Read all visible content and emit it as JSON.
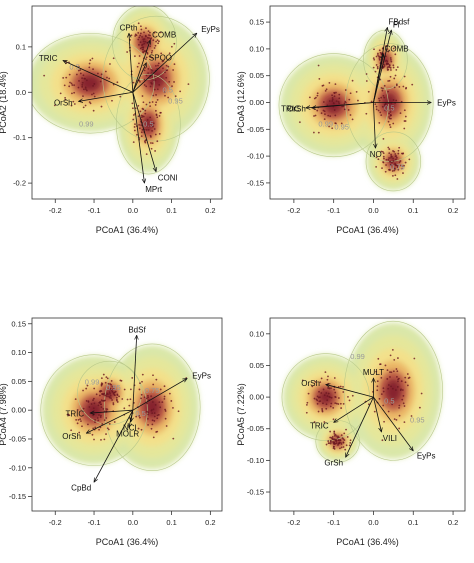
{
  "figure": {
    "panels": [
      {
        "id": "a",
        "xlabel": "PCoA1 (36.4%)",
        "ylabel": "PCoA2 (18.4%)",
        "xlim": [
          -0.26,
          0.23
        ],
        "ylim": [
          -0.235,
          0.19
        ],
        "xticks": [
          "-0.2",
          "-0.1",
          "0.0",
          "0.1",
          "0.2"
        ],
        "xtick_values": [
          -0.2,
          -0.1,
          0.0,
          0.1,
          0.2
        ],
        "yticks": [
          "0.1",
          "0.0",
          "-0.1",
          "-0.2"
        ],
        "ytick_values": [
          0.1,
          0.0,
          -0.1,
          -0.2
        ],
        "density_centers": [
          {
            "x": -0.11,
            "y": 0.02,
            "w": 0.06,
            "h": 0.04
          },
          {
            "x": 0.06,
            "y": 0.03,
            "w": 0.05,
            "h": 0.05
          },
          {
            "x": 0.04,
            "y": -0.07,
            "w": 0.03,
            "h": 0.04
          },
          {
            "x": 0.03,
            "y": 0.11,
            "w": 0.03,
            "h": 0.03
          }
        ],
        "contour_labels": [
          {
            "text": "0.5",
            "x": -0.15,
            "y": 0.05
          },
          {
            "text": "0.95",
            "x": 0.11,
            "y": -0.025
          },
          {
            "text": "0.99",
            "x": -0.12,
            "y": -0.075
          },
          {
            "text": "0.5",
            "x": 0.09,
            "y": 0.0
          },
          {
            "text": "0.5",
            "x": 0.04,
            "y": -0.075
          }
        ],
        "vectors": [
          {
            "label": "TRIC",
            "x": -0.18,
            "y": 0.07
          },
          {
            "label": "CPth",
            "x": -0.01,
            "y": 0.13
          },
          {
            "label": "COMB",
            "x": 0.045,
            "y": 0.115
          },
          {
            "label": "EyPs",
            "x": 0.165,
            "y": 0.13
          },
          {
            "label": "SPOO",
            "x": 0.035,
            "y": 0.065
          },
          {
            "label": "OrSh",
            "x": -0.14,
            "y": -0.02
          },
          {
            "label": "CONI",
            "x": 0.06,
            "y": -0.175
          },
          {
            "label": "MPrt",
            "x": 0.03,
            "y": -0.2
          }
        ]
      },
      {
        "id": "b",
        "xlabel": "PCoA1 (36.4%)",
        "ylabel": "PCoA3 (12.6%)",
        "xlim": [
          -0.26,
          0.23
        ],
        "ylim": [
          -0.18,
          0.18
        ],
        "xticks": [
          "-0.2",
          "-0.1",
          "0.0",
          "0.1",
          "0.2"
        ],
        "xtick_values": [
          -0.2,
          -0.1,
          0.0,
          0.1,
          0.2
        ],
        "yticks": [
          "0.15",
          "0.10",
          "0.05",
          "0.00",
          "-0.05",
          "-0.10",
          "-0.15"
        ],
        "ytick_values": [
          0.15,
          0.1,
          0.05,
          0.0,
          -0.05,
          -0.1,
          -0.15
        ],
        "density_centers": [
          {
            "x": -0.1,
            "y": -0.005,
            "w": 0.05,
            "h": 0.035
          },
          {
            "x": 0.04,
            "y": 0.0,
            "w": 0.04,
            "h": 0.04
          },
          {
            "x": 0.05,
            "y": -0.11,
            "w": 0.025,
            "h": 0.02
          },
          {
            "x": 0.03,
            "y": 0.08,
            "w": 0.02,
            "h": 0.02
          }
        ],
        "contour_labels": [
          {
            "text": "0.99",
            "x": -0.12,
            "y": -0.045
          },
          {
            "text": "0.95",
            "x": -0.08,
            "y": -0.05
          },
          {
            "text": "0.5",
            "x": 0.04,
            "y": -0.015
          },
          {
            "text": "0.75",
            "x": 0.06,
            "y": -0.125
          }
        ],
        "vectors": [
          {
            "label": "FBdsf",
            "x": 0.035,
            "y": 0.14
          },
          {
            "label": "Fl",
            "x": 0.045,
            "y": 0.135
          },
          {
            "label": "COMB",
            "x": 0.025,
            "y": 0.09
          },
          {
            "label": "EyPs",
            "x": 0.145,
            "y": 0.0
          },
          {
            "label": "TRIC",
            "x": -0.17,
            "y": -0.01
          },
          {
            "label": "OrSh",
            "x": -0.155,
            "y": -0.01
          },
          {
            "label": "NO",
            "x": 0.005,
            "y": -0.085
          }
        ]
      },
      {
        "id": "c",
        "xlabel": "PCoA1 (36.4%)",
        "ylabel": "PCoA4 (7.98%)",
        "xlim": [
          -0.26,
          0.23
        ],
        "ylim": [
          -0.175,
          0.16
        ],
        "xticks": [
          "-0.2",
          "-0.1",
          "0.0",
          "0.1",
          "0.2"
        ],
        "xtick_values": [
          -0.2,
          -0.1,
          0.0,
          0.1,
          0.2
        ],
        "yticks": [
          "0.15",
          "0.10",
          "0.05",
          "0.00",
          "-0.05",
          "-0.10",
          "-0.15"
        ],
        "ytick_values": [
          0.15,
          0.1,
          0.05,
          0.0,
          -0.05,
          -0.1,
          -0.15
        ],
        "density_centers": [
          {
            "x": -0.1,
            "y": 0.0,
            "w": 0.05,
            "h": 0.035
          },
          {
            "x": 0.05,
            "y": 0.005,
            "w": 0.045,
            "h": 0.04
          },
          {
            "x": -0.06,
            "y": 0.03,
            "w": 0.03,
            "h": 0.02
          }
        ],
        "contour_labels": [
          {
            "text": "0.99",
            "x": -0.105,
            "y": 0.045
          },
          {
            "text": "0.95",
            "x": -0.05,
            "y": 0.035
          },
          {
            "text": "0.75",
            "x": 0.05,
            "y": 0.03
          },
          {
            "text": "0.5",
            "x": 0.02,
            "y": -0.01
          }
        ],
        "vectors": [
          {
            "label": "BdSf",
            "x": 0.01,
            "y": 0.13
          },
          {
            "label": "EyPs",
            "x": 0.14,
            "y": 0.055
          },
          {
            "label": "TRIC",
            "x": -0.11,
            "y": -0.005
          },
          {
            "label": "OrSh",
            "x": -0.12,
            "y": -0.04
          },
          {
            "label": "CpBd",
            "x": -0.1,
            "y": -0.125
          },
          {
            "label": "NCI",
            "x": -0.005,
            "y": -0.02
          },
          {
            "label": "MOLR",
            "x": -0.01,
            "y": -0.03
          }
        ]
      },
      {
        "id": "d",
        "xlabel": "PCoA1 (36.4%)",
        "ylabel": "PCoA5 (7.22%)",
        "xlim": [
          -0.26,
          0.23
        ],
        "ylim": [
          -0.18,
          0.125
        ],
        "xticks": [
          "-0.2",
          "-0.1",
          "0.0",
          "0.1",
          "0.2"
        ],
        "xtick_values": [
          -0.2,
          -0.1,
          0.0,
          0.1,
          0.2
        ],
        "yticks": [
          "0.10",
          "0.05",
          "0.00",
          "-0.05",
          "-0.10",
          "-0.15"
        ],
        "ytick_values": [
          0.1,
          0.05,
          0.0,
          -0.05,
          -0.1,
          -0.15
        ],
        "density_centers": [
          {
            "x": -0.12,
            "y": 0.0,
            "w": 0.04,
            "h": 0.025
          },
          {
            "x": 0.05,
            "y": 0.01,
            "w": 0.045,
            "h": 0.04
          },
          {
            "x": -0.09,
            "y": -0.07,
            "w": 0.02,
            "h": 0.012
          }
        ],
        "contour_labels": [
          {
            "text": "0.99",
            "x": -0.04,
            "y": 0.06
          },
          {
            "text": "0.95",
            "x": 0.11,
            "y": -0.04
          },
          {
            "text": "0.5",
            "x": 0.04,
            "y": -0.01
          }
        ],
        "vectors": [
          {
            "label": "OrSh",
            "x": -0.12,
            "y": 0.02
          },
          {
            "label": "MULT",
            "x": 0.0,
            "y": 0.03
          },
          {
            "label": "TRIC",
            "x": -0.1,
            "y": -0.04
          },
          {
            "label": "VILI",
            "x": 0.02,
            "y": -0.055
          },
          {
            "label": "EyPs",
            "x": 0.1,
            "y": -0.085
          },
          {
            "label": "GrSh",
            "x": -0.07,
            "y": -0.095
          }
        ]
      }
    ]
  },
  "colors": {
    "outer": "#d8e6a4",
    "mid": "#f3e08a",
    "warm": "#eab062",
    "hot": "#b2473e",
    "core": "#7e1b2a",
    "points": "#6a1620",
    "contour_label": "#9a9a9a",
    "arrow": "#111111"
  }
}
